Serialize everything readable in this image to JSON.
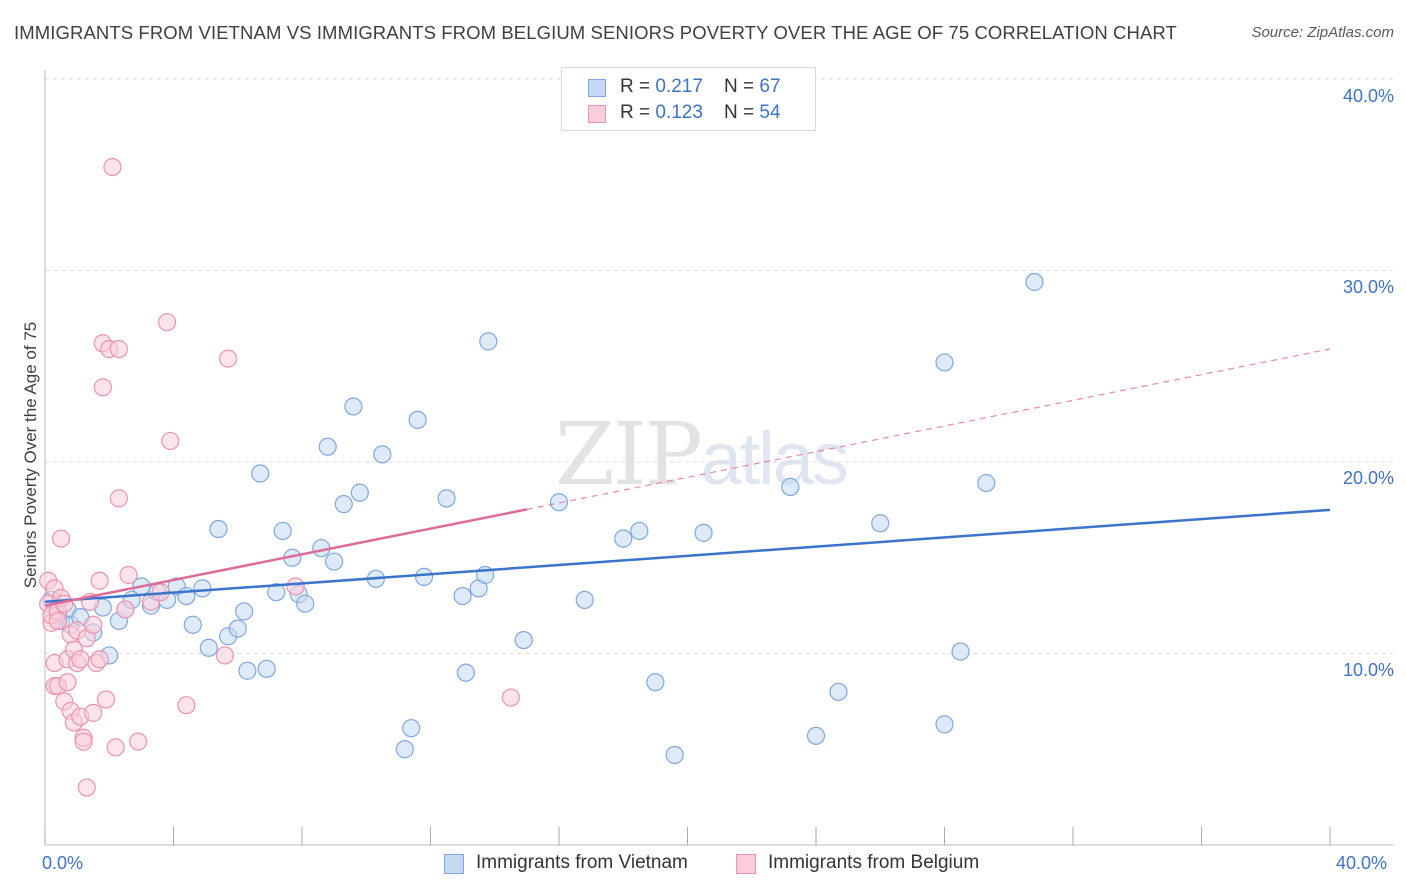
{
  "header": {
    "title": "IMMIGRANTS FROM VIETNAM VS IMMIGRANTS FROM BELGIUM SENIORS POVERTY OVER THE AGE OF 75 CORRELATION CHART",
    "source": "Source: ZipAtlas.com"
  },
  "watermark": {
    "zip": "ZIP",
    "atlas": "atlas"
  },
  "colors": {
    "vietnam_fill": "#c5d8f3",
    "vietnam_stroke": "#7fa8e0",
    "vietnam_line": "#3a74cc",
    "belgium_fill": "#f9cdd9",
    "belgium_stroke": "#ec93b0",
    "belgium_line": "#e06b96",
    "grid": "#dddddd",
    "axis_text": "#3e73c7"
  },
  "legend": {
    "rows": [
      {
        "r_label": "R = ",
        "r_value": "0.217",
        "n_label": "N = ",
        "n_value": "67"
      },
      {
        "r_label": "R = ",
        "r_value": "0.123",
        "n_label": "N = ",
        "n_value": "54"
      }
    ]
  },
  "chart_data": {
    "type": "scatter",
    "title": "IMMIGRANTS FROM VIETNAM VS IMMIGRANTS FROM BELGIUM SENIORS POVERTY OVER THE AGE OF 75 CORRELATION CHART",
    "xlabel": "",
    "ylabel": "Seniors Poverty Over the Age of 75",
    "xlim": [
      0,
      40
    ],
    "ylim": [
      0,
      40
    ],
    "x_tick_labels": [
      "0.0%",
      "40.0%"
    ],
    "y_tick_labels": [
      "10.0%",
      "20.0%",
      "30.0%",
      "40.0%"
    ],
    "y_ticks": [
      10,
      20,
      30,
      40
    ],
    "grid": true,
    "legend_position": "top-center",
    "series": [
      {
        "name": "Immigrants from Vietnam",
        "R": 0.217,
        "N": 67,
        "trend": {
          "x0": 0,
          "y0": 12.7,
          "x1": 40,
          "y1": 17.5,
          "solid_until": 40
        },
        "points": [
          [
            0.2,
            12.8
          ],
          [
            0.4,
            12.0
          ],
          [
            0.5,
            11.7
          ],
          [
            0.7,
            12.3
          ],
          [
            0.8,
            11.5
          ],
          [
            1.1,
            11.9
          ],
          [
            1.5,
            11.1
          ],
          [
            1.8,
            12.4
          ],
          [
            2.0,
            9.9
          ],
          [
            2.3,
            11.7
          ],
          [
            2.5,
            12.3
          ],
          [
            2.7,
            12.8
          ],
          [
            3.0,
            13.5
          ],
          [
            3.3,
            12.5
          ],
          [
            3.5,
            13.2
          ],
          [
            3.8,
            12.8
          ],
          [
            4.1,
            13.5
          ],
          [
            4.4,
            13.0
          ],
          [
            4.6,
            11.5
          ],
          [
            4.9,
            13.4
          ],
          [
            5.1,
            10.3
          ],
          [
            5.4,
            16.5
          ],
          [
            5.7,
            10.9
          ],
          [
            6.0,
            11.3
          ],
          [
            6.2,
            12.2
          ],
          [
            6.3,
            9.1
          ],
          [
            6.7,
            19.4
          ],
          [
            6.9,
            9.2
          ],
          [
            7.2,
            13.2
          ],
          [
            7.4,
            16.4
          ],
          [
            7.7,
            15.0
          ],
          [
            7.9,
            13.1
          ],
          [
            8.1,
            12.6
          ],
          [
            8.6,
            15.5
          ],
          [
            8.8,
            20.8
          ],
          [
            9.0,
            14.8
          ],
          [
            9.3,
            17.8
          ],
          [
            9.6,
            22.9
          ],
          [
            9.8,
            18.4
          ],
          [
            10.3,
            13.9
          ],
          [
            10.5,
            20.4
          ],
          [
            11.2,
            5.0
          ],
          [
            11.4,
            6.1
          ],
          [
            11.6,
            22.2
          ],
          [
            11.8,
            14.0
          ],
          [
            12.5,
            18.1
          ],
          [
            13.0,
            13.0
          ],
          [
            13.1,
            9.0
          ],
          [
            13.5,
            13.4
          ],
          [
            13.7,
            14.1
          ],
          [
            13.8,
            26.3
          ],
          [
            14.9,
            10.7
          ],
          [
            16.0,
            17.9
          ],
          [
            16.8,
            12.8
          ],
          [
            18.0,
            16.0
          ],
          [
            18.5,
            16.4
          ],
          [
            19.0,
            8.5
          ],
          [
            19.6,
            4.7
          ],
          [
            20.5,
            16.3
          ],
          [
            23.2,
            18.7
          ],
          [
            24.0,
            5.7
          ],
          [
            24.7,
            8.0
          ],
          [
            26.0,
            16.8
          ],
          [
            28.0,
            25.2
          ],
          [
            28.0,
            6.3
          ],
          [
            28.5,
            10.1
          ],
          [
            29.3,
            18.9
          ],
          [
            30.8,
            29.4
          ]
        ]
      },
      {
        "name": "Immigrants from Belgium",
        "R": 0.123,
        "N": 54,
        "trend": {
          "x0": 0,
          "y0": 12.5,
          "x1": 40,
          "y1": 25.9,
          "solid_until": 15
        },
        "points": [
          [
            0.1,
            13.8
          ],
          [
            0.1,
            12.6
          ],
          [
            0.2,
            11.6
          ],
          [
            0.2,
            12.0
          ],
          [
            0.3,
            13.4
          ],
          [
            0.3,
            8.3
          ],
          [
            0.3,
            9.5
          ],
          [
            0.4,
            12.2
          ],
          [
            0.4,
            11.7
          ],
          [
            0.4,
            8.3
          ],
          [
            0.5,
            12.9
          ],
          [
            0.5,
            16.0
          ],
          [
            0.6,
            12.6
          ],
          [
            0.6,
            7.5
          ],
          [
            0.7,
            9.7
          ],
          [
            0.7,
            8.5
          ],
          [
            0.8,
            7.0
          ],
          [
            0.8,
            11.0
          ],
          [
            0.9,
            10.2
          ],
          [
            0.9,
            6.4
          ],
          [
            1.0,
            9.5
          ],
          [
            1.0,
            11.2
          ],
          [
            1.1,
            9.7
          ],
          [
            1.1,
            6.7
          ],
          [
            1.2,
            5.6
          ],
          [
            1.2,
            5.4
          ],
          [
            1.3,
            10.8
          ],
          [
            1.3,
            3.0
          ],
          [
            1.4,
            12.7
          ],
          [
            1.5,
            11.5
          ],
          [
            1.5,
            6.9
          ],
          [
            1.6,
            9.5
          ],
          [
            1.7,
            13.8
          ],
          [
            1.7,
            9.7
          ],
          [
            1.8,
            26.2
          ],
          [
            1.8,
            23.9
          ],
          [
            1.9,
            7.6
          ],
          [
            2.0,
            25.9
          ],
          [
            2.1,
            35.4
          ],
          [
            2.2,
            5.1
          ],
          [
            2.3,
            18.1
          ],
          [
            2.3,
            25.9
          ],
          [
            2.5,
            12.3
          ],
          [
            2.6,
            14.1
          ],
          [
            2.9,
            5.4
          ],
          [
            3.3,
            12.7
          ],
          [
            3.6,
            13.2
          ],
          [
            3.8,
            27.3
          ],
          [
            3.9,
            21.1
          ],
          [
            4.4,
            7.3
          ],
          [
            5.6,
            9.9
          ],
          [
            5.7,
            25.4
          ],
          [
            7.8,
            13.5
          ],
          [
            14.5,
            7.7
          ]
        ]
      }
    ]
  },
  "bottom_legend": {
    "items": [
      {
        "label": "Immigrants from Vietnam"
      },
      {
        "label": "Immigrants from Belgium"
      }
    ]
  },
  "axes": {
    "y_label": "Seniors Poverty Over the Age of 75",
    "x_min_label": "0.0%",
    "x_max_label": "40.0%",
    "y_labels": [
      "40.0%",
      "30.0%",
      "20.0%",
      "10.0%"
    ]
  }
}
